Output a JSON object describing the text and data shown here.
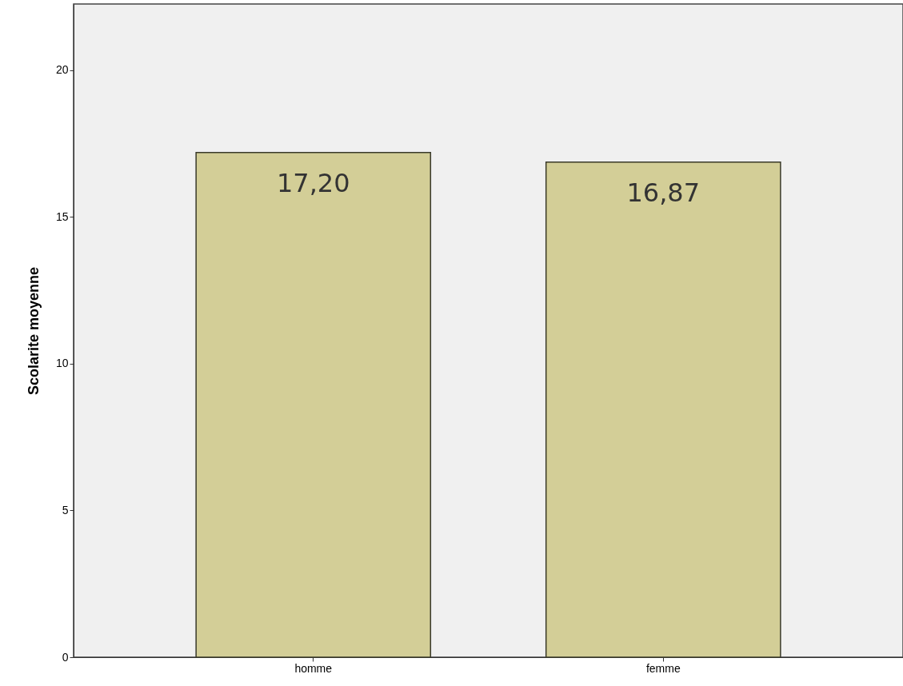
{
  "chart_data": {
    "type": "bar",
    "ylabel": "Scolarite moyenne",
    "categories": [
      "homme",
      "femme"
    ],
    "values": [
      17.2,
      16.87
    ],
    "value_labels": [
      "17,20",
      "16,87"
    ],
    "color": "#d3ce97",
    "ylim": [
      0,
      22.26
    ],
    "yticks": [
      0,
      5,
      10,
      15,
      20
    ],
    "grid": false
  }
}
